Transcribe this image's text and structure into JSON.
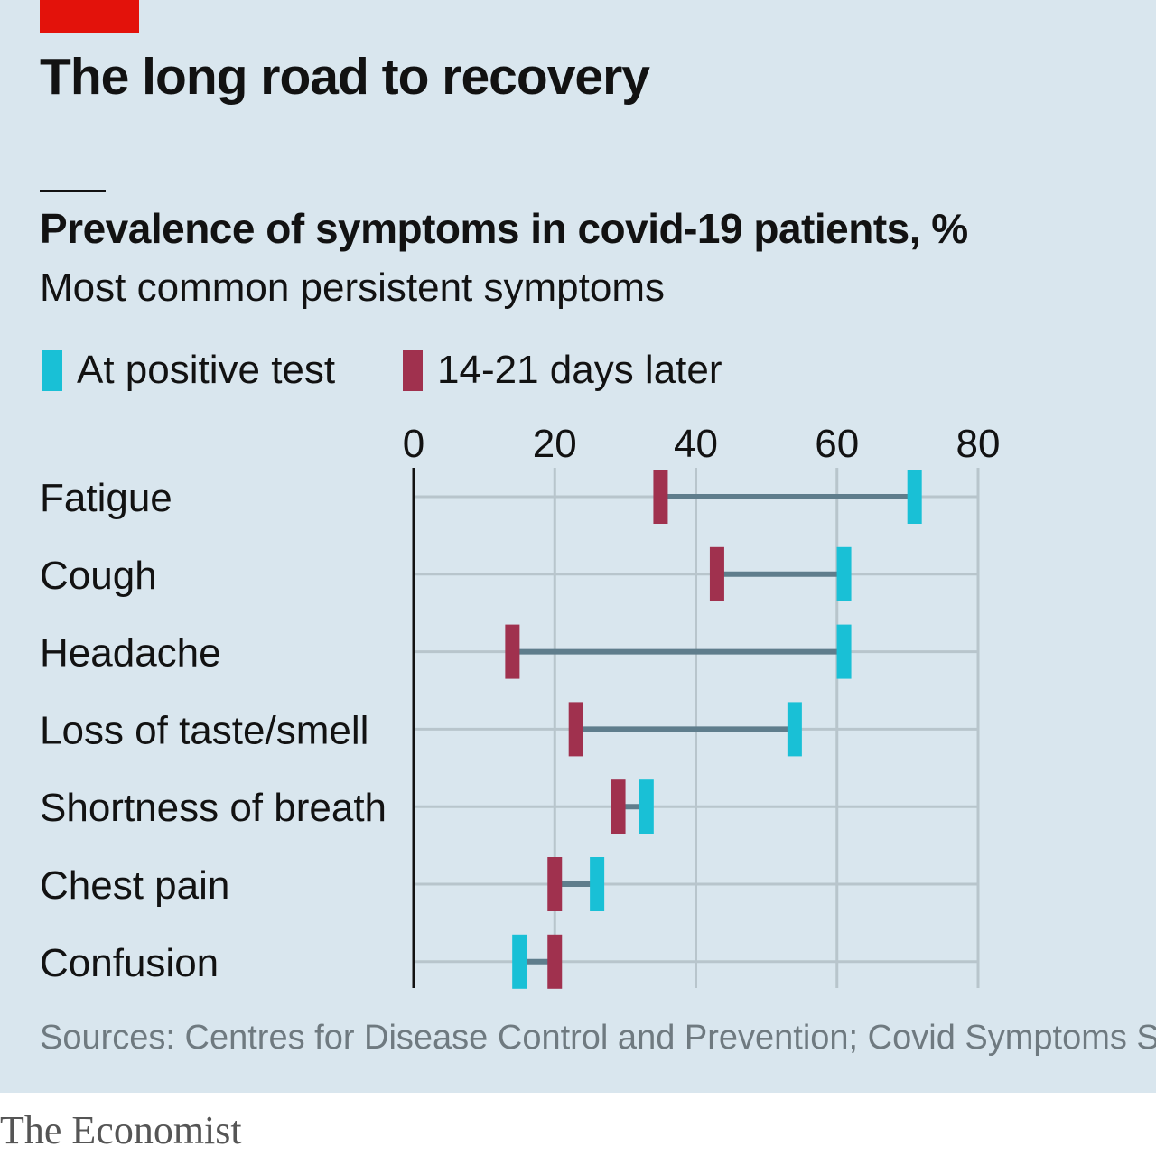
{
  "title": "The long road to recovery",
  "source": "Sources: Centres for Disease Control and Prevention; Covid Symptoms Study",
  "logo": "The Economist",
  "colors": {
    "background": "#d9e6ee",
    "brand_red": "#e3120b",
    "positive": "#19c0d6",
    "later": "#a0314e",
    "connector": "#5f7d8c",
    "grid": "#b8c5cc"
  },
  "chart_data": {
    "type": "dumbbell",
    "title": "Prevalence of symptoms in covid-19 patients, %",
    "subtitle": "Most common persistent symptoms",
    "xlabel": "",
    "ylabel": "",
    "xlim": [
      0,
      80
    ],
    "xticks": [
      0,
      20,
      40,
      60,
      80
    ],
    "grid": true,
    "legend_position": "top-left",
    "categories": [
      "Fatigue",
      "Cough",
      "Headache",
      "Loss of taste/smell",
      "Shortness of breath",
      "Chest pain",
      "Confusion"
    ],
    "series": [
      {
        "name": "At positive test",
        "color": "#19c0d6",
        "values": [
          71,
          61,
          61,
          54,
          33,
          26,
          15
        ]
      },
      {
        "name": "14-21 days later",
        "color": "#a0314e",
        "values": [
          35,
          43,
          14,
          23,
          29,
          20,
          20
        ]
      }
    ]
  }
}
